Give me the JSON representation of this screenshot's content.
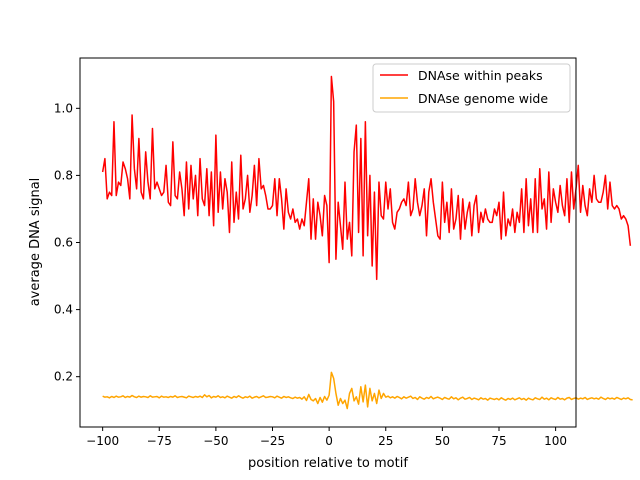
{
  "chart_data": {
    "type": "line",
    "title": "",
    "xlabel": "position relative to motif",
    "ylabel": "average DNA signal",
    "xlim": [
      -110,
      109
    ],
    "ylim": [
      0.05,
      1.15
    ],
    "xticks": [
      -100,
      -75,
      -50,
      -25,
      0,
      25,
      50,
      75,
      100
    ],
    "xtick_labels": [
      "−100",
      "−75",
      "−50",
      "−25",
      "0",
      "25",
      "50",
      "75",
      "100"
    ],
    "yticks": [
      0.2,
      0.4,
      0.6,
      0.8,
      1.0
    ],
    "ytick_labels": [
      "0.2",
      "0.4",
      "0.6",
      "0.8",
      "1.0"
    ],
    "grid": false,
    "legend_position": "top-right",
    "x_start": -100,
    "series": [
      {
        "name": "DNAse within peaks",
        "color": "#ff0000",
        "values": [
          0.81,
          0.85,
          0.73,
          0.75,
          0.74,
          0.96,
          0.74,
          0.78,
          0.77,
          0.84,
          0.82,
          0.79,
          0.73,
          0.98,
          0.82,
          0.76,
          0.91,
          0.75,
          0.73,
          0.87,
          0.78,
          0.73,
          0.94,
          0.76,
          0.78,
          0.76,
          0.74,
          0.75,
          0.83,
          0.72,
          0.71,
          0.9,
          0.74,
          0.73,
          0.81,
          0.76,
          0.68,
          0.84,
          0.7,
          0.83,
          0.73,
          0.8,
          0.68,
          0.85,
          0.73,
          0.71,
          0.82,
          0.68,
          0.81,
          0.65,
          0.92,
          0.69,
          0.81,
          0.7,
          0.79,
          0.75,
          0.63,
          0.84,
          0.66,
          0.75,
          0.67,
          0.86,
          0.7,
          0.73,
          0.8,
          0.69,
          0.74,
          0.83,
          0.71,
          0.85,
          0.76,
          0.77,
          0.74,
          0.7,
          0.7,
          0.71,
          0.79,
          0.68,
          0.79,
          0.73,
          0.64,
          0.76,
          0.69,
          0.67,
          0.7,
          0.66,
          0.67,
          0.64,
          0.67,
          0.65,
          0.72,
          0.79,
          0.61,
          0.73,
          0.61,
          0.72,
          0.68,
          0.62,
          0.74,
          0.71,
          0.54,
          1.095,
          1.02,
          0.55,
          0.72,
          0.65,
          0.58,
          0.78,
          0.61,
          0.66,
          0.56,
          0.87,
          0.95,
          0.63,
          0.91,
          0.56,
          0.96,
          0.62,
          0.8,
          0.53,
          0.75,
          0.49,
          0.78,
          0.68,
          0.67,
          0.78,
          0.7,
          0.76,
          0.66,
          0.64,
          0.69,
          0.7,
          0.72,
          0.73,
          0.71,
          0.78,
          0.68,
          0.7,
          0.79,
          0.72,
          0.68,
          0.71,
          0.76,
          0.62,
          0.75,
          0.79,
          0.72,
          0.67,
          0.62,
          0.61,
          0.78,
          0.66,
          0.72,
          0.63,
          0.76,
          0.64,
          0.67,
          0.74,
          0.61,
          0.73,
          0.64,
          0.69,
          0.72,
          0.62,
          0.71,
          0.74,
          0.63,
          0.69,
          0.66,
          0.7,
          0.67,
          0.66,
          0.66,
          0.7,
          0.68,
          0.72,
          0.61,
          0.75,
          0.62,
          0.67,
          0.65,
          0.7,
          0.63,
          0.69,
          0.66,
          0.76,
          0.63,
          0.79,
          0.65,
          0.73,
          0.63,
          0.79,
          0.63,
          0.82,
          0.7,
          0.73,
          0.64,
          0.81,
          0.66,
          0.76,
          0.72,
          0.69,
          0.77,
          0.71,
          0.68,
          0.79,
          0.66,
          0.81,
          0.7,
          0.76,
          0.83,
          0.69,
          0.77,
          0.71,
          0.68,
          0.76,
          0.72,
          0.8,
          0.73,
          0.72,
          0.72,
          0.75,
          0.8,
          0.7,
          0.78,
          0.71,
          0.7,
          0.71,
          0.7,
          0.67,
          0.68,
          0.67,
          0.65,
          0.59
        ]
      },
      {
        "name": "DNAse genome wide",
        "color": "#ffa500",
        "values": [
          0.142,
          0.139,
          0.14,
          0.137,
          0.141,
          0.138,
          0.142,
          0.139,
          0.14,
          0.143,
          0.138,
          0.141,
          0.139,
          0.144,
          0.14,
          0.138,
          0.142,
          0.139,
          0.141,
          0.14,
          0.138,
          0.143,
          0.139,
          0.14,
          0.141,
          0.137,
          0.142,
          0.139,
          0.14,
          0.138,
          0.141,
          0.139,
          0.143,
          0.138,
          0.14,
          0.141,
          0.139,
          0.137,
          0.142,
          0.14,
          0.138,
          0.141,
          0.139,
          0.142,
          0.138,
          0.146,
          0.14,
          0.144,
          0.137,
          0.141,
          0.139,
          0.143,
          0.138,
          0.14,
          0.137,
          0.142,
          0.139,
          0.136,
          0.141,
          0.138,
          0.143,
          0.139,
          0.136,
          0.14,
          0.138,
          0.142,
          0.136,
          0.139,
          0.141,
          0.137,
          0.14,
          0.143,
          0.138,
          0.139,
          0.141,
          0.14,
          0.137,
          0.142,
          0.139,
          0.136,
          0.141,
          0.138,
          0.14,
          0.137,
          0.135,
          0.139,
          0.136,
          0.138,
          0.133,
          0.14,
          0.129,
          0.147,
          0.132,
          0.128,
          0.135,
          0.12,
          0.138,
          0.124,
          0.141,
          0.13,
          0.145,
          0.213,
          0.195,
          0.15,
          0.115,
          0.135,
          0.12,
          0.13,
          0.105,
          0.15,
          0.165,
          0.128,
          0.14,
          0.118,
          0.17,
          0.125,
          0.175,
          0.11,
          0.165,
          0.128,
          0.15,
          0.12,
          0.16,
          0.135,
          0.15,
          0.139,
          0.142,
          0.137,
          0.14,
          0.136,
          0.141,
          0.138,
          0.134,
          0.14,
          0.136,
          0.139,
          0.142,
          0.135,
          0.138,
          0.132,
          0.14,
          0.136,
          0.133,
          0.138,
          0.135,
          0.141,
          0.134,
          0.137,
          0.139,
          0.136,
          0.132,
          0.138,
          0.135,
          0.133,
          0.14,
          0.134,
          0.137,
          0.131,
          0.136,
          0.139,
          0.133,
          0.135,
          0.138,
          0.132,
          0.136,
          0.134,
          0.131,
          0.137,
          0.133,
          0.135,
          0.13,
          0.136,
          0.134,
          0.132,
          0.135,
          0.131,
          0.137,
          0.133,
          0.13,
          0.135,
          0.132,
          0.136,
          0.131,
          0.134,
          0.137,
          0.132,
          0.135,
          0.13,
          0.136,
          0.133,
          0.131,
          0.137,
          0.134,
          0.132,
          0.139,
          0.133,
          0.136,
          0.131,
          0.137,
          0.134,
          0.132,
          0.138,
          0.133,
          0.135,
          0.131,
          0.136,
          0.138,
          0.132,
          0.135,
          0.137,
          0.133,
          0.136,
          0.134,
          0.138,
          0.132,
          0.135,
          0.137,
          0.134,
          0.136,
          0.133,
          0.139,
          0.135,
          0.132,
          0.137,
          0.134,
          0.136,
          0.133,
          0.138,
          0.135,
          0.132,
          0.136,
          0.134,
          0.137,
          0.132,
          0.131
        ]
      }
    ]
  }
}
